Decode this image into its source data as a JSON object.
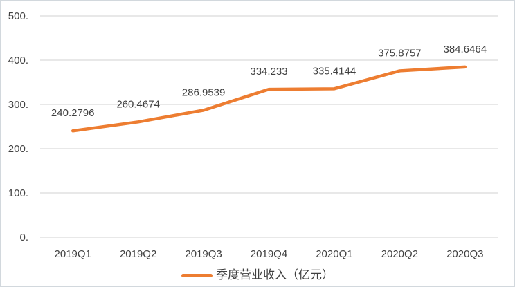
{
  "chart_data": {
    "type": "line",
    "categories": [
      "2019Q1",
      "2019Q2",
      "2019Q3",
      "2019Q4",
      "2020Q1",
      "2020Q2",
      "2020Q3"
    ],
    "series": [
      {
        "name": "季度营业收入（亿元）",
        "values": [
          240.2796,
          260.4674,
          286.9539,
          334.233,
          335.4144,
          375.8757,
          384.6464
        ]
      }
    ],
    "value_labels": [
      "240.2796",
      "260.4674",
      "286.9539",
      "334.233",
      "335.4144",
      "375.8757",
      "384.6464"
    ],
    "y_tick_labels": [
      "0.",
      "100.",
      "200.",
      "300.",
      "400.",
      "500."
    ],
    "ylim": [
      0,
      500
    ],
    "title": "",
    "xlabel": "",
    "ylabel": "",
    "grid": "horizontal",
    "legend_position": "bottom",
    "legend_label": "季度营业收入（亿元）",
    "colors": {
      "line": "#ED7D31",
      "text": "#404040",
      "grid": "#D9D9D9",
      "background": "#FFFFFF",
      "border": "#D2D8DD"
    }
  }
}
